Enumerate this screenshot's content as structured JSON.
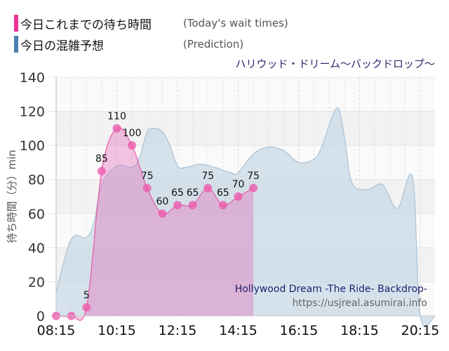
{
  "legend": {
    "items": [
      {
        "label_jp": "今日これまでの待ち時間",
        "label_en": "(Today's wait times)",
        "color": "#ee3399"
      },
      {
        "label_jp": "今日の混雑予想",
        "label_en": "(Prediction)",
        "color": "#4a7fb0"
      }
    ]
  },
  "subtitle": "ハリウッド・ドリーム〜バックドロップ〜",
  "watermark": {
    "title": "Hollywood Dream -The Ride- Backdrop-",
    "url": "https://usjreal.asumirai.info"
  },
  "chart_data": {
    "type": "area",
    "title": "ハリウッド・ドリーム〜バックドロップ〜",
    "xlabel": "",
    "ylabel": "待ち時間（分）min",
    "ylim": [
      0,
      140
    ],
    "yticks": [
      "0",
      "20",
      "40",
      "60",
      "80",
      "100",
      "120",
      "140"
    ],
    "xticks": [
      "08:15",
      "10:15",
      "12:15",
      "14:15",
      "16:15",
      "18:15",
      "20:15"
    ],
    "grid": true,
    "legend_position": "top-left",
    "series": [
      {
        "name": "今日これまでの待ち時間 (Today's wait times)",
        "color": "#ee3399",
        "x": [
          "08:15",
          "08:45",
          "09:15",
          "09:45",
          "10:15",
          "10:45",
          "11:15",
          "11:45",
          "12:15",
          "12:45",
          "13:15",
          "13:45",
          "14:15",
          "14:45"
        ],
        "values": [
          0,
          0,
          5,
          85,
          110,
          100,
          75,
          60,
          65,
          65,
          75,
          65,
          70,
          75
        ]
      },
      {
        "name": "今日の混雑予想 (Prediction)",
        "color": "#4a7fb0",
        "x": [
          "08:15",
          "08:45",
          "09:15",
          "09:30",
          "09:45",
          "10:15",
          "10:45",
          "11:00",
          "11:15",
          "11:30",
          "11:45",
          "12:00",
          "12:15",
          "12:30",
          "13:00",
          "13:30",
          "14:00",
          "14:15",
          "14:45",
          "15:15",
          "15:45",
          "16:15",
          "16:45",
          "17:00",
          "17:30",
          "17:45",
          "18:00",
          "18:30",
          "19:00",
          "19:30",
          "20:00",
          "20:15",
          "20:45"
        ],
        "values": [
          14,
          45,
          46,
          55,
          77,
          88,
          87,
          93,
          108,
          110,
          108,
          100,
          88,
          87,
          89,
          87,
          84,
          84,
          95,
          99,
          97,
          90,
          92,
          99,
          122,
          105,
          78,
          74,
          77,
          63,
          81,
          0,
          0
        ]
      }
    ]
  }
}
